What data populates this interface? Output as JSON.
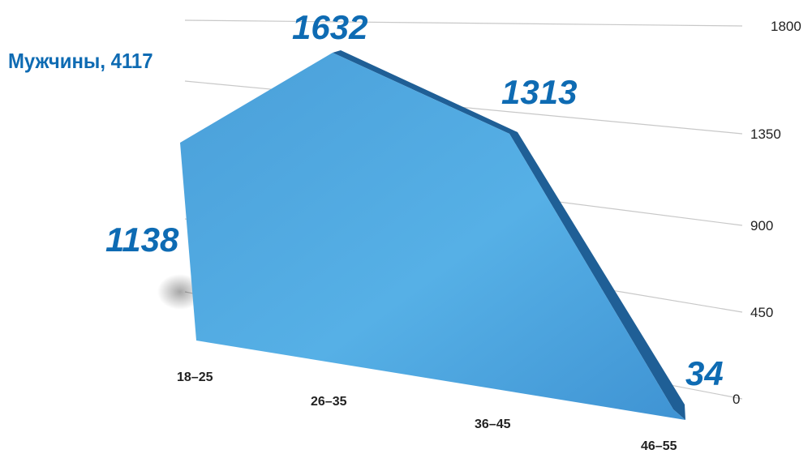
{
  "chart_data": {
    "type": "area",
    "series_title": "Мужчины, 4117",
    "categories": [
      "18–25",
      "26–35",
      "36–45",
      "46–55"
    ],
    "series": [
      {
        "values": [
          1138,
          1632,
          1313,
          34
        ]
      }
    ],
    "data_labels": [
      "1138",
      "1632",
      "1313",
      "34"
    ],
    "y_ticks": [
      "0",
      "450",
      "900",
      "1350",
      "1800"
    ],
    "ylim": [
      0,
      1800
    ],
    "grid": true,
    "style": "3d-perspective",
    "colors": {
      "face": "#4fa8e0",
      "face_light": "#5ab6ea",
      "edge": "#1f5f96",
      "label": "#0e6bb3",
      "grid": "#c8c8c8",
      "axis_text": "#222222"
    }
  }
}
